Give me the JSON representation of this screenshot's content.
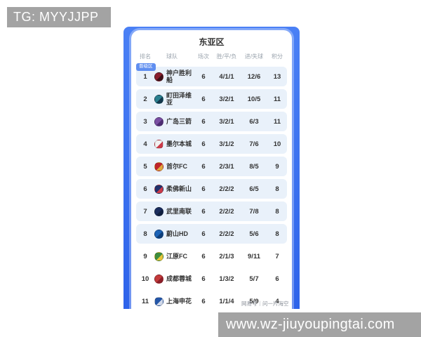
{
  "overlays": {
    "tg_label": "TG: MYYJJPP",
    "site_watermark": "www.wz-jiuyoupingtai.com",
    "source_watermark": "网易号｜问一片海空"
  },
  "standings": {
    "title": "东亚区",
    "qualify_badge": "晋级区",
    "columns": {
      "rank": "排名",
      "team": "球队",
      "games": "场次",
      "wdl": "胜/平/负",
      "goals": "进/失球",
      "points": "积分"
    },
    "rows": [
      {
        "rank": "1",
        "team": "神户胜利船",
        "games": "6",
        "wdl": "4/1/1",
        "goals": "12/6",
        "points": "13",
        "highlighted": true,
        "badge": true,
        "logo_colors": [
          "#8a1e2d",
          "#3d1018"
        ]
      },
      {
        "rank": "2",
        "team": "町田泽维亚",
        "games": "6",
        "wdl": "3/2/1",
        "goals": "10/5",
        "points": "11",
        "highlighted": true,
        "badge": false,
        "logo_colors": [
          "#2a7f8f",
          "#13384d"
        ]
      },
      {
        "rank": "3",
        "team": "广岛三箭",
        "games": "6",
        "wdl": "3/2/1",
        "goals": "6/3",
        "points": "11",
        "highlighted": true,
        "badge": false,
        "logo_colors": [
          "#7a4fa3",
          "#4d2d73"
        ]
      },
      {
        "rank": "4",
        "team": "墨尔本城",
        "games": "6",
        "wdl": "3/1/2",
        "goals": "7/6",
        "points": "10",
        "highlighted": true,
        "badge": false,
        "logo_colors": [
          "#f2f2f2",
          "#cc3b4a"
        ]
      },
      {
        "rank": "5",
        "team": "首尔FC",
        "games": "6",
        "wdl": "2/3/1",
        "goals": "8/5",
        "points": "9",
        "highlighted": true,
        "badge": false,
        "logo_colors": [
          "#c0242b",
          "#e0a93e"
        ]
      },
      {
        "rank": "6",
        "team": "柔佛新山",
        "games": "6",
        "wdl": "2/2/2",
        "goals": "6/5",
        "points": "8",
        "highlighted": true,
        "badge": false,
        "logo_colors": [
          "#20306b",
          "#cc3b4a"
        ]
      },
      {
        "rank": "7",
        "team": "武里南联",
        "games": "6",
        "wdl": "2/2/2",
        "goals": "7/8",
        "points": "8",
        "highlighted": true,
        "badge": false,
        "logo_colors": [
          "#1b2d5e",
          "#10203f"
        ]
      },
      {
        "rank": "8",
        "team": "蔚山HD",
        "games": "6",
        "wdl": "2/2/2",
        "goals": "5/6",
        "points": "8",
        "highlighted": true,
        "badge": false,
        "logo_colors": [
          "#1b63b7",
          "#0f3f7a"
        ]
      },
      {
        "rank": "9",
        "team": "江原FC",
        "games": "6",
        "wdl": "2/1/3",
        "goals": "9/11",
        "points": "7",
        "highlighted": false,
        "badge": false,
        "logo_colors": [
          "#3e8e3e",
          "#e8c53a"
        ]
      },
      {
        "rank": "10",
        "team": "成都蓉城",
        "games": "6",
        "wdl": "1/3/2",
        "goals": "5/7",
        "points": "6",
        "highlighted": false,
        "badge": false,
        "logo_colors": [
          "#c43a3a",
          "#8e1f2a"
        ]
      },
      {
        "rank": "11",
        "team": "上海申花",
        "games": "6",
        "wdl": "1/1/4",
        "goals": "5/9",
        "points": "4",
        "highlighted": false,
        "badge": false,
        "logo_colors": [
          "#2456a8",
          "#cfd8ea"
        ]
      }
    ]
  },
  "colors": {
    "panel_blue_top": "#4a80f5",
    "panel_blue_bottom": "#2e63ea",
    "row_tint": "#e9f1fa",
    "badge_blue": "#5f8ef0",
    "overlay_gray": "#a3a3a3"
  }
}
